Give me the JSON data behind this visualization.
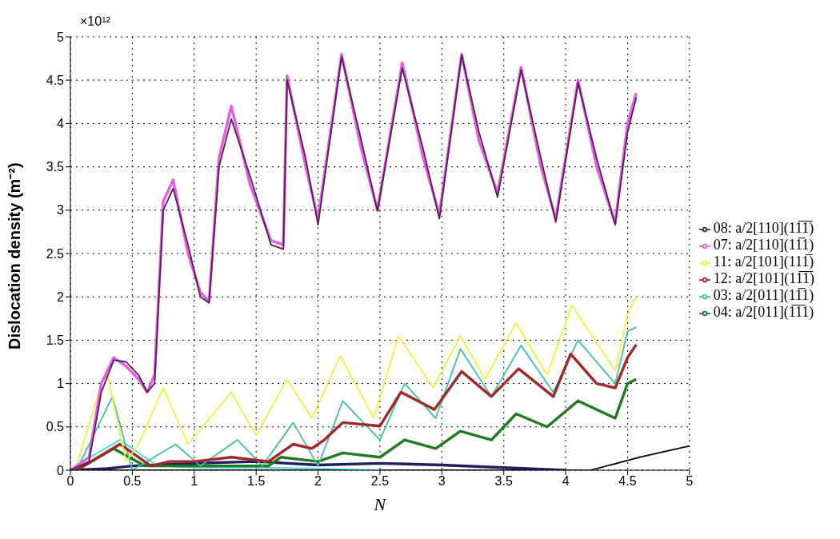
{
  "chart_data": {
    "type": "line",
    "xlabel": "N",
    "ylabel": "Dislocation density (m⁻²)",
    "annotations": [
      "×10¹²"
    ],
    "xlim": [
      0,
      5
    ],
    "xticks": [
      0,
      0.5,
      1,
      1.5,
      2,
      2.5,
      3,
      3.5,
      4,
      4.5,
      5
    ],
    "ylim": [
      0,
      5
    ],
    "yticks": [
      0,
      0.5,
      1,
      1.5,
      2,
      2.5,
      3,
      3.5,
      4,
      4.5,
      5
    ],
    "grid": true,
    "legend": "right",
    "marker": "none",
    "line_style": "solid",
    "series": [
      {
        "name": "08: a/2[110](11̅1̅)",
        "color": "#5a1a5a",
        "x": [
          0,
          0.15,
          0.25,
          0.35,
          0.45,
          0.55,
          0.62,
          0.68,
          0.75,
          0.83,
          0.95,
          1.05,
          1.12,
          1.2,
          1.3,
          1.45,
          1.62,
          1.72,
          1.75,
          1.9,
          2.0,
          2.19,
          2.35,
          2.48,
          2.68,
          2.85,
          2.98,
          3.16,
          3.3,
          3.45,
          3.64,
          3.8,
          3.92,
          4.1,
          4.25,
          4.4,
          4.5,
          4.57
        ],
        "values": [
          0,
          0.1,
          0.9,
          1.27,
          1.25,
          1.1,
          0.9,
          1.0,
          3.0,
          3.25,
          2.6,
          2.0,
          1.93,
          3.5,
          4.05,
          3.4,
          2.6,
          2.55,
          4.5,
          3.6,
          2.83,
          4.77,
          3.8,
          2.99,
          4.64,
          3.7,
          2.9,
          4.79,
          3.9,
          3.15,
          4.62,
          3.6,
          2.86,
          4.47,
          3.6,
          2.83,
          3.9,
          4.3
        ]
      },
      {
        "name": "07: a/2[110](11̅1)",
        "color": "#e060e0",
        "x": [
          0,
          0.15,
          0.25,
          0.35,
          0.45,
          0.55,
          0.62,
          0.68,
          0.75,
          0.83,
          0.95,
          1.05,
          1.12,
          1.2,
          1.3,
          1.45,
          1.62,
          1.72,
          1.75,
          1.9,
          2.0,
          2.19,
          2.35,
          2.48,
          2.68,
          2.85,
          2.98,
          3.16,
          3.3,
          3.45,
          3.64,
          3.8,
          3.92,
          4.1,
          4.25,
          4.4,
          4.5,
          4.57
        ],
        "values": [
          0,
          0.15,
          1.0,
          1.3,
          1.2,
          1.05,
          0.9,
          1.1,
          3.1,
          3.35,
          2.5,
          2.05,
          1.95,
          3.6,
          4.2,
          3.3,
          2.65,
          2.6,
          4.55,
          3.5,
          2.9,
          4.8,
          3.7,
          3.0,
          4.7,
          3.6,
          2.95,
          4.8,
          3.8,
          3.2,
          4.65,
          3.5,
          2.9,
          4.5,
          3.5,
          2.85,
          4.0,
          4.35
        ]
      },
      {
        "name": "11: a/2[101](111̅)",
        "color": "#f0f040",
        "x": [
          0,
          0.05,
          0.25,
          0.3,
          0.45,
          0.55,
          0.75,
          0.95,
          1.3,
          1.5,
          1.75,
          1.95,
          2.18,
          2.45,
          2.65,
          2.93,
          3.15,
          3.35,
          3.6,
          3.85,
          4.05,
          4.4,
          4.5,
          4.57
        ],
        "values": [
          0,
          0.05,
          1.0,
          1.1,
          0.1,
          0.3,
          0.95,
          0.3,
          0.9,
          0.4,
          1.05,
          0.6,
          1.32,
          0.6,
          1.55,
          0.95,
          1.55,
          1.05,
          1.7,
          1.1,
          1.9,
          1.15,
          1.8,
          2.0
        ]
      },
      {
        "name": "12: a/2[101](11̅1̅)",
        "color": "#a02828",
        "x": [
          0,
          0.05,
          0.4,
          0.65,
          0.8,
          1.0,
          1.3,
          1.6,
          1.8,
          1.95,
          2.05,
          2.2,
          2.5,
          2.67,
          2.94,
          3.16,
          3.4,
          3.62,
          3.9,
          4.04,
          4.25,
          4.4,
          4.5,
          4.57
        ],
        "values": [
          0,
          0,
          0.3,
          0.05,
          0.1,
          0.1,
          0.15,
          0.1,
          0.3,
          0.25,
          0.35,
          0.55,
          0.51,
          0.9,
          0.7,
          1.14,
          0.85,
          1.17,
          0.85,
          1.34,
          1.0,
          0.95,
          1.3,
          1.45
        ]
      },
      {
        "name": "03: a/2[011](11̅1)",
        "color": "#40c0a0",
        "x": [
          0,
          0.05,
          0.34,
          0.5,
          0.85,
          1.05,
          1.35,
          1.55,
          1.8,
          2.0,
          2.2,
          2.5,
          2.7,
          2.95,
          3.15,
          3.4,
          3.64,
          3.9,
          4.1,
          4.4,
          4.5,
          4.57
        ],
        "values": [
          0,
          0,
          0.85,
          0,
          0.3,
          0.05,
          0.35,
          0.05,
          0.55,
          0.05,
          0.8,
          0.35,
          1.0,
          0.6,
          1.4,
          0.85,
          1.44,
          0.9,
          1.5,
          1.0,
          1.6,
          1.65
        ]
      },
      {
        "name": "04: a/2[011](1̅1̅1)",
        "color": "#207a20",
        "x": [
          0,
          0.05,
          0.35,
          0.6,
          1.0,
          1.6,
          1.7,
          2.0,
          2.2,
          2.5,
          2.7,
          2.95,
          3.15,
          3.4,
          3.6,
          3.85,
          4.1,
          4.4,
          4.5,
          4.57
        ],
        "values": [
          0,
          0,
          0.25,
          0.05,
          0.05,
          0.05,
          0.15,
          0.1,
          0.2,
          0.15,
          0.35,
          0.25,
          0.45,
          0.35,
          0.65,
          0.5,
          0.8,
          0.6,
          1.0,
          1.05
        ]
      },
      {
        "color": "#40d8e8",
        "x": [
          0,
          0.1,
          0.4,
          0.55,
          0.7,
          1.0,
          1.5,
          2.0,
          2.5
        ],
        "values": [
          0,
          0.1,
          0.35,
          0.2,
          0.05,
          0.03,
          0.03,
          0.02,
          0
        ]
      },
      {
        "color": "#202060",
        "x": [
          0,
          0.3,
          0.5,
          1.0,
          1.5,
          2.0,
          2.5,
          3.0,
          3.5,
          4.0
        ],
        "values": [
          0,
          0.02,
          0.05,
          0.08,
          0.1,
          0.06,
          0.08,
          0.06,
          0.03,
          0
        ]
      },
      {
        "color": "#000000",
        "x": [
          0,
          4.2,
          4.6,
          5
        ],
        "values": [
          0,
          0,
          0.15,
          0.28
        ]
      }
    ]
  }
}
